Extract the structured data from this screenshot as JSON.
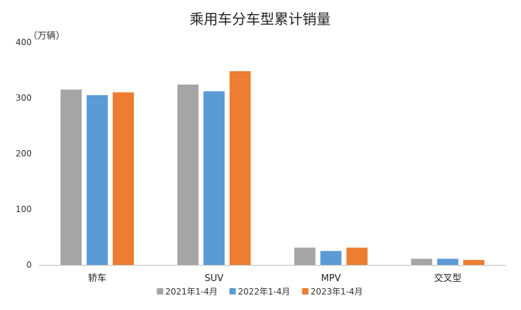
{
  "chart_data": {
    "type": "bar",
    "title": "乘用车分车型累计销量",
    "unit_label": "（万辆）",
    "categories": [
      "轿车",
      "SUV",
      "MPV",
      "交叉型"
    ],
    "series": [
      {
        "name": "2021年1-4月",
        "color": "#A5A5A5",
        "values": [
          315,
          324,
          31,
          11
        ]
      },
      {
        "name": "2022年1-4月",
        "color": "#5B9BD5",
        "values": [
          305,
          312,
          25,
          11
        ]
      },
      {
        "name": "2023年1-4月",
        "color": "#ED7D31",
        "values": [
          310,
          348,
          31,
          9
        ]
      }
    ],
    "ylim": [
      0,
      400
    ],
    "yticks": [
      0,
      100,
      200,
      300,
      400
    ],
    "grid": false,
    "legend_position": "bottom"
  }
}
